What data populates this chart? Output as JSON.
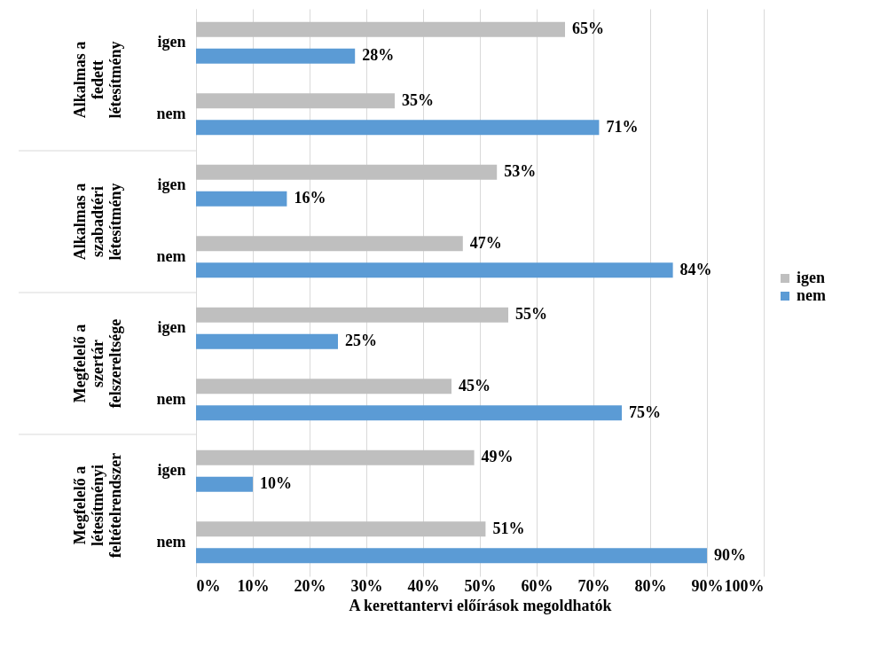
{
  "chart_data": {
    "type": "bar",
    "orientation": "horizontal",
    "categories": [
      "igen",
      "nem",
      "igen",
      "nem",
      "igen",
      "nem",
      "igen",
      "nem"
    ],
    "annotations": [
      "Alkalmas a fedett létesítmény",
      "Alkalmas a szabadtéri létesítmény",
      "Megfelelő a szertár felszereltsége",
      "Megfelelő a létesítményi feltételrendszer"
    ],
    "series": [
      {
        "name": "igen",
        "color": "#bfbfbf",
        "values": [
          65,
          35,
          53,
          47,
          55,
          45,
          49,
          51
        ],
        "value_labels": [
          "65%",
          "35%",
          "53%",
          "47%",
          "55%",
          "45%",
          "49%",
          "51%"
        ]
      },
      {
        "name": "nem",
        "color": "#5b9bd5",
        "values": [
          28,
          71,
          16,
          84,
          25,
          75,
          10,
          90
        ],
        "value_labels": [
          "28%",
          "71%",
          "16%",
          "84%",
          "25%",
          "75%",
          "10%",
          "90%"
        ]
      }
    ],
    "xlim": [
      0,
      100
    ],
    "xticks": [
      {
        "value": 0,
        "label": "0%"
      },
      {
        "value": 10,
        "label": "10%"
      },
      {
        "value": 20,
        "label": "20%"
      },
      {
        "value": 30,
        "label": "30%"
      },
      {
        "value": 40,
        "label": "40%"
      },
      {
        "value": 50,
        "label": "50%"
      },
      {
        "value": 60,
        "label": "60%"
      },
      {
        "value": 70,
        "label": "70%"
      },
      {
        "value": 80,
        "label": "80%"
      },
      {
        "value": 90,
        "label": "90%"
      },
      {
        "value": 100,
        "label": "100%"
      }
    ],
    "xlabel": "A kerettantervi előírások megoldhatók",
    "grid": "x",
    "legend": "right"
  }
}
